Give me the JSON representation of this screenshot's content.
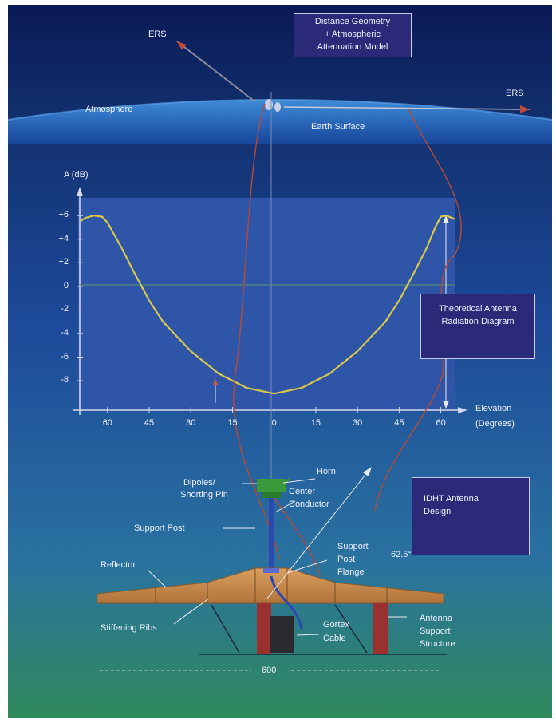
{
  "labels": {
    "ers_left": "ERS",
    "ers_right": "ERS",
    "atmosphere": "Atmosphere",
    "earth_surface": "Earth Surface",
    "horn": "Horn",
    "dipoles_line1": "Dipoles/",
    "dipoles_line2": "Shorting Pin",
    "center_line1": "Center",
    "center_line2": "Conductor",
    "support_post": "Support Post",
    "support_flange_line1": "Support",
    "support_flange_line2": "Post",
    "support_flange_line3": "Flange",
    "angle": "62.5°",
    "reflector": "Reflector",
    "stiffening_ribs": "Stiffening Ribs",
    "gortex_line1": "Gortex",
    "gortex_line2": "Cable",
    "antenna_support_line1": "Antenna",
    "antenna_support_line2": "Support",
    "antenna_support_line3": "Structure",
    "width_600": "600"
  },
  "boxes": {
    "distance_model": [
      "Distance Geometry",
      "+ Atmospheric",
      "Attenuation Model"
    ],
    "radiation_diagram": [
      "Theoretical Antenna",
      "Radiation Diagram"
    ],
    "idht_design": [
      "IDHT Antenna",
      "Design"
    ]
  },
  "colors": {
    "sky_top": "#0a1a55",
    "earth_band": "#1e5fb0",
    "panel_mid": "#1d4a9a",
    "panel_bottom": "#2f8a5c",
    "plot_bg": "#2f55a8",
    "curve": "#d9c84a",
    "red_line": "#b04a3a",
    "reflector": "#c98a4a",
    "post": "#9b3030",
    "feed_green": "#3a9a3a"
  },
  "chart_data": {
    "type": "line",
    "title": "",
    "xlabel": "Elevation (Degrees)",
    "ylabel": "A (dB)",
    "x_ticks": [
      "60",
      "45",
      "30",
      "15",
      "0",
      "15",
      "30",
      "45",
      "60"
    ],
    "x_tick_values": [
      -60,
      -45,
      -30,
      -15,
      0,
      15,
      30,
      45,
      60
    ],
    "y_ticks": [
      "+6",
      "+4",
      "+2",
      "0",
      "-2",
      "-4",
      "-6",
      "-8"
    ],
    "y_tick_values": [
      6,
      4,
      2,
      0,
      -2,
      -4,
      -6,
      -8
    ],
    "xlim": [
      -70,
      65
    ],
    "ylim": [
      -10.5,
      7.5
    ],
    "series": [
      {
        "x": [
          -70,
          -68,
          -65,
          -62,
          -60,
          -55,
          -50,
          -45,
          -40,
          -30,
          -20,
          -10,
          0,
          10,
          20,
          30,
          40,
          45,
          50,
          55,
          58,
          60,
          62,
          65
        ],
        "values": [
          5.5,
          5.8,
          6.0,
          5.9,
          5.4,
          3.3,
          1.0,
          -1.2,
          -3.0,
          -5.5,
          -7.4,
          -8.6,
          -9.1,
          -8.6,
          -7.4,
          -5.5,
          -3.0,
          -1.2,
          1.0,
          3.3,
          5.0,
          5.9,
          6.0,
          5.7
        ]
      }
    ]
  }
}
